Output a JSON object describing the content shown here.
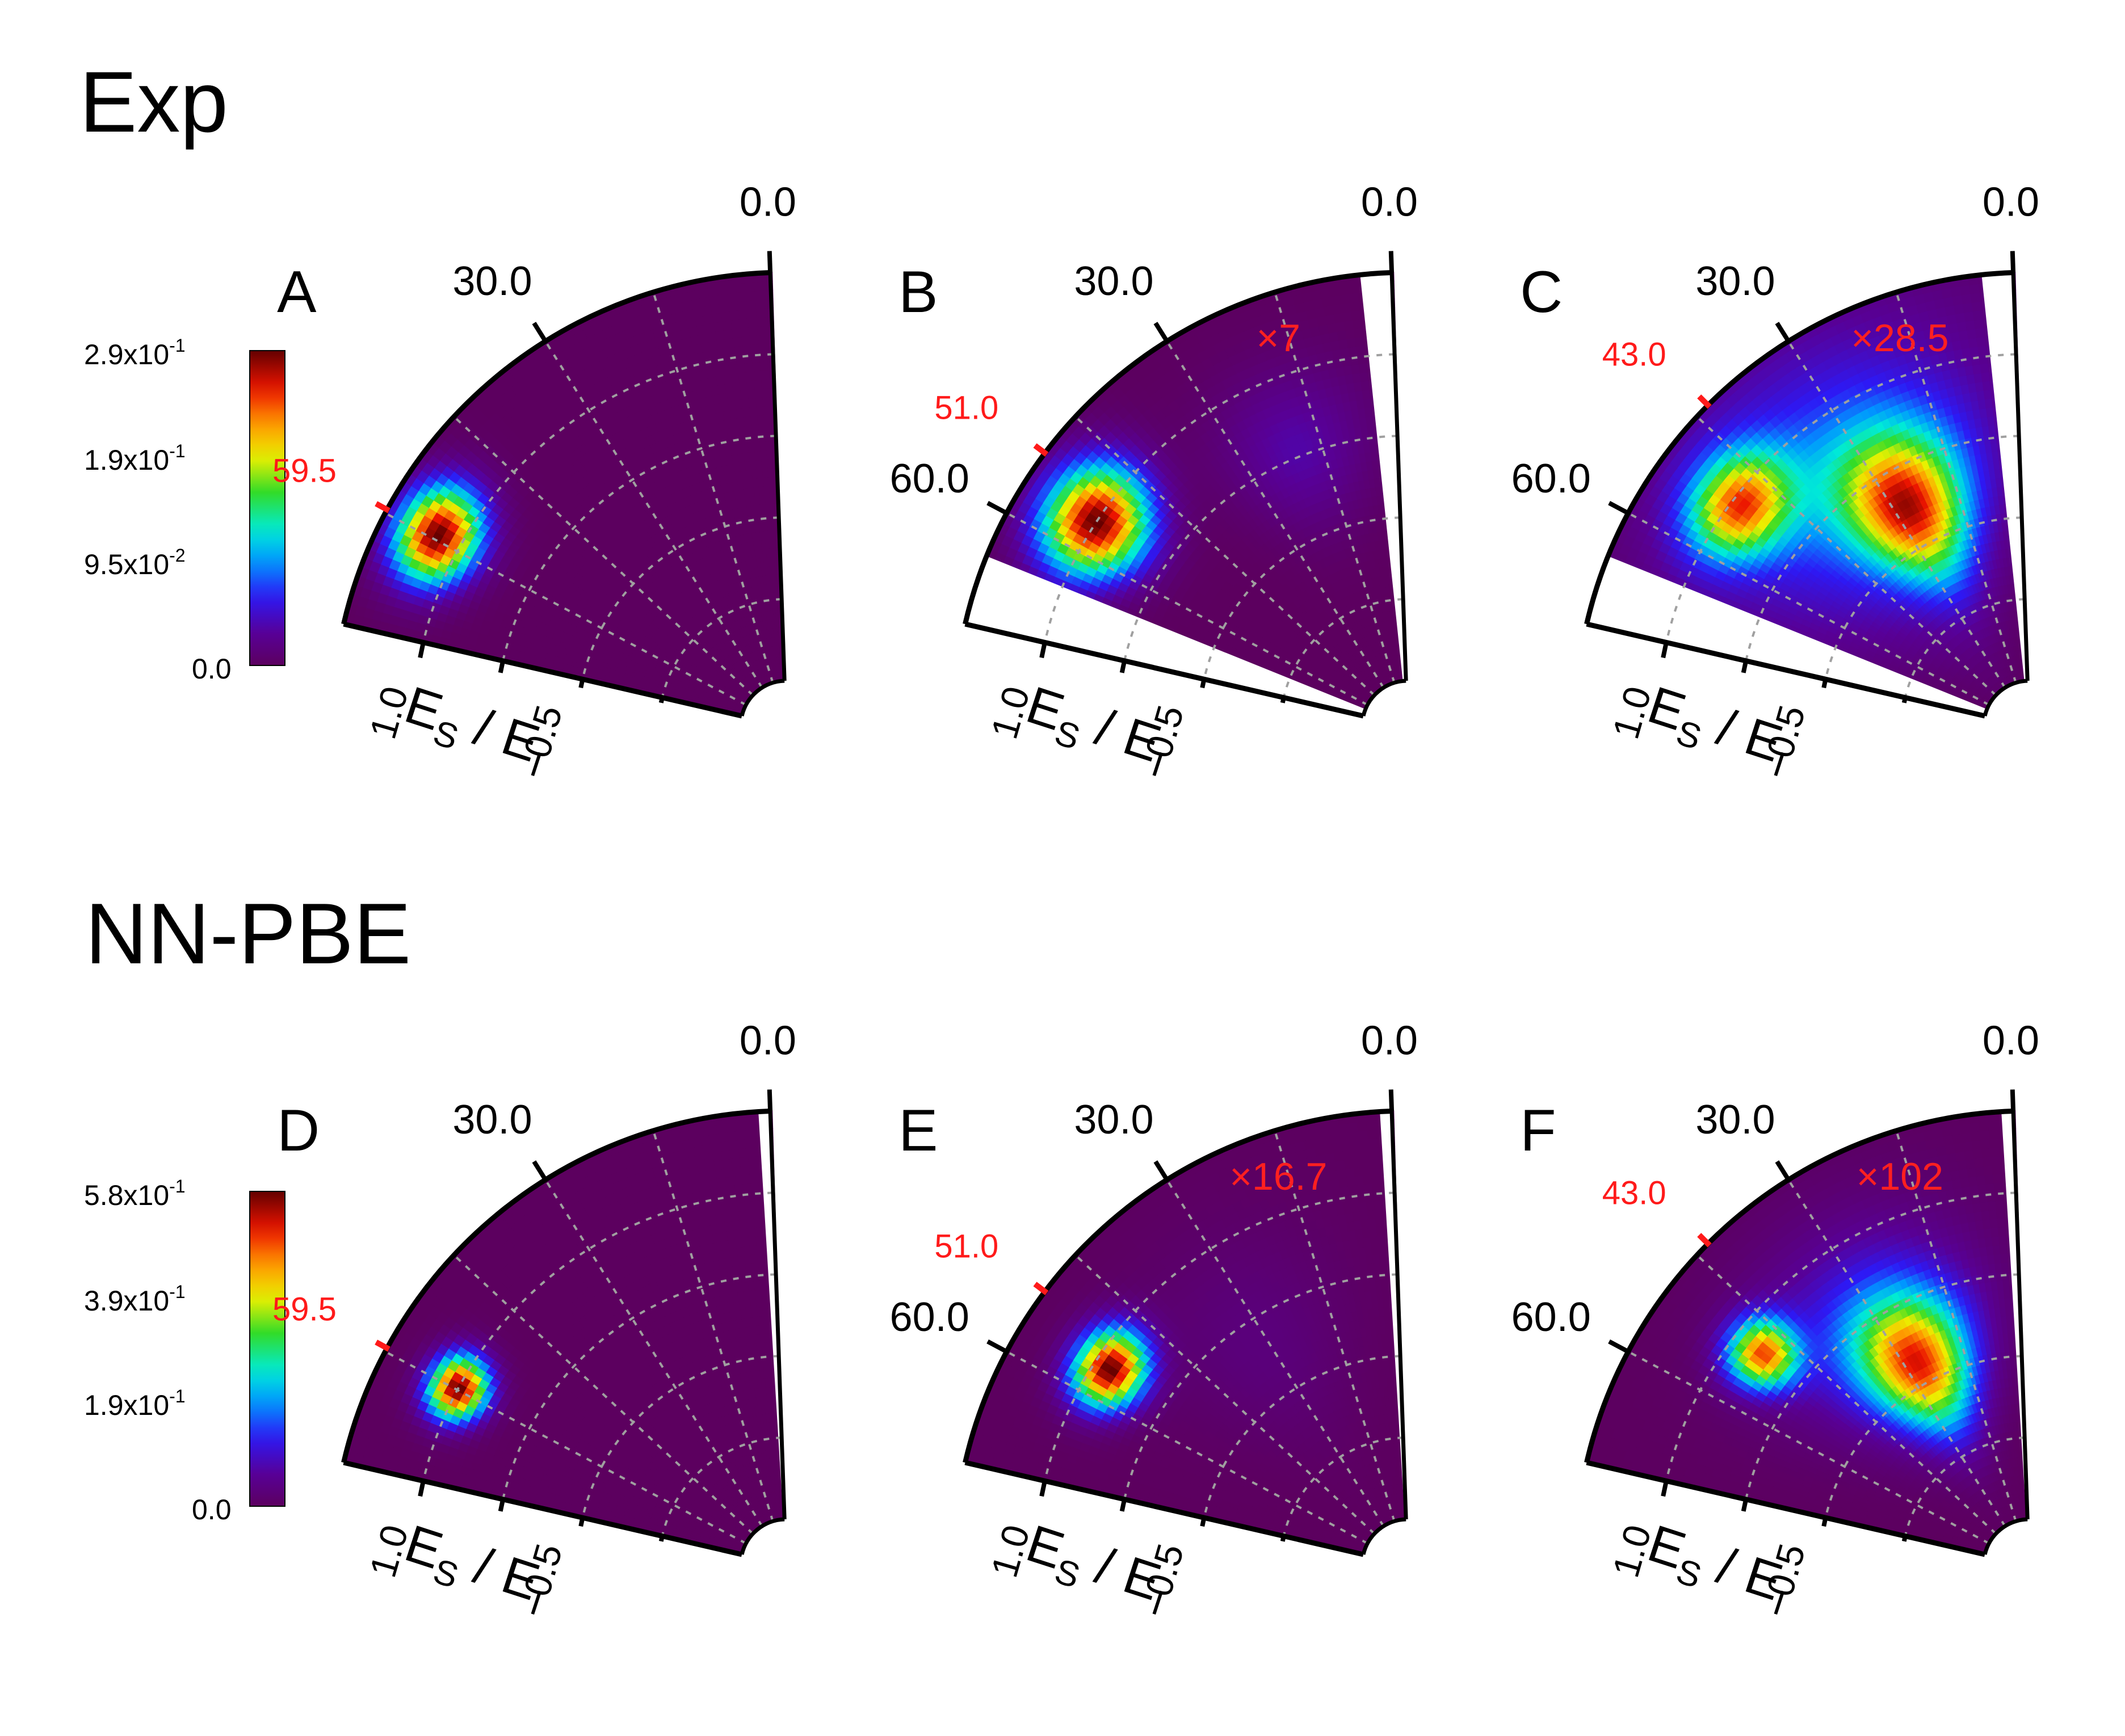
{
  "sections": [
    {
      "title": "Exp",
      "colorbar_ticks": [
        "2.9x10",
        "-1",
        "1.9x10",
        "-1",
        "9.5x10",
        "-2",
        "0.0"
      ]
    },
    {
      "title": "NN-PBE",
      "colorbar_ticks": [
        "5.8x10",
        "-1",
        "3.9x10",
        "-1",
        "1.9x10",
        "-1",
        "0.0"
      ]
    }
  ],
  "colorbars": [
    {
      "max": 0.29,
      "ticks": [
        {
          "mant": "2.9x10",
          "exp": "-1",
          "v": 0.29
        },
        {
          "mant": "1.9x10",
          "exp": "-1",
          "v": 0.19
        },
        {
          "mant": "9.5x10",
          "exp": "-2",
          "v": 0.095
        },
        {
          "mant": "0.0",
          "exp": "",
          "v": 0
        }
      ]
    },
    {
      "max": 0.58,
      "ticks": [
        {
          "mant": "5.8x10",
          "exp": "-1",
          "v": 0.58
        },
        {
          "mant": "3.9x10",
          "exp": "-1",
          "v": 0.39
        },
        {
          "mant": "1.9x10",
          "exp": "-1",
          "v": 0.19
        },
        {
          "mant": "0.0",
          "exp": "",
          "v": 0
        }
      ]
    }
  ],
  "colors": {
    "background": "#5c005f",
    "grid": "#a0a0a0",
    "red_label": "#ff1a1a",
    "axis": "#000000"
  },
  "chart_data": [
    {
      "panel": "A",
      "type": "heatmap",
      "polar": true,
      "theta_range": [
        0,
        75
      ],
      "r_range": [
        0,
        1.0
      ],
      "angle_ticks": [
        "0.0",
        "30.0"
      ],
      "red_tick": {
        "label": "59.5",
        "angle": 59.5
      },
      "radial_ticks": [
        "1.0",
        "0.5"
      ],
      "xlabel": {
        "main": "E",
        "sub1": "S",
        "slash": " / ",
        "main2": "E",
        "sub2": "I"
      },
      "multiplier": "",
      "masked_angles": [],
      "peaks": [
        {
          "theta": 59.5,
          "r": 0.86,
          "sr": 0.07,
          "st": 5,
          "amp": 0.29
        }
      ]
    },
    {
      "panel": "B",
      "type": "heatmap",
      "polar": true,
      "theta_range": [
        0,
        75
      ],
      "r_range": [
        0,
        1.0
      ],
      "angle_ticks": [
        "0.0",
        "30.0",
        "60.0"
      ],
      "red_tick": {
        "label": "51.0",
        "angle": 51.0
      },
      "radial_ticks": [
        "1.0",
        "0.5"
      ],
      "xlabel": {
        "main": "E",
        "sub1": "S",
        "slash": " / ",
        "main2": "E",
        "sub2": "I"
      },
      "multiplier": "×7",
      "masked_angles": [
        [
          0,
          4
        ],
        [
          66,
          75
        ]
      ],
      "peaks": [
        {
          "theta": 55,
          "r": 0.8,
          "sr": 0.09,
          "st": 6,
          "amp": 0.29
        },
        {
          "theta": 20,
          "r": 0.62,
          "sr": 0.14,
          "st": 10,
          "amp": 0.035
        }
      ]
    },
    {
      "panel": "C",
      "type": "heatmap",
      "polar": true,
      "theta_range": [
        0,
        75
      ],
      "r_range": [
        0,
        1.0
      ],
      "angle_ticks": [
        "0.0",
        "30.0",
        "60.0"
      ],
      "red_tick": {
        "label": "43.0",
        "angle": 43.0
      },
      "radial_ticks": [
        "1.0",
        "0.5"
      ],
      "xlabel": {
        "main": "E",
        "sub1": "S",
        "slash": " / ",
        "main2": "E",
        "sub2": "I"
      },
      "multiplier": "×28.5",
      "masked_angles": [
        [
          0,
          4
        ],
        [
          66,
          75
        ]
      ],
      "peaks": [
        {
          "theta": 51,
          "r": 0.78,
          "sr": 0.08,
          "st": 6,
          "amp": 0.2
        },
        {
          "theta": 27,
          "r": 0.5,
          "sr": 0.13,
          "st": 9,
          "amp": 0.21
        },
        {
          "theta": 36,
          "r": 0.62,
          "sr": 0.28,
          "st": 22,
          "amp": 0.08
        }
      ]
    },
    {
      "panel": "D",
      "type": "heatmap",
      "polar": true,
      "theta_range": [
        0,
        75
      ],
      "r_range": [
        0,
        1.0
      ],
      "angle_ticks": [
        "0.0",
        "30.0"
      ],
      "red_tick": {
        "label": "59.5",
        "angle": 59.5
      },
      "radial_ticks": [
        "1.0",
        "0.5"
      ],
      "xlabel": {
        "main": "E",
        "sub1": "S",
        "slash": " / ",
        "main2": "E",
        "sub2": "I"
      },
      "multiplier": "",
      "masked_angles": [
        [
          0,
          1.5
        ]
      ],
      "peaks": [
        {
          "theta": 60,
          "r": 0.8,
          "sr": 0.05,
          "st": 3.5,
          "amp": 0.58
        }
      ]
    },
    {
      "panel": "E",
      "type": "heatmap",
      "polar": true,
      "theta_range": [
        0,
        75
      ],
      "r_range": [
        0,
        1.0
      ],
      "angle_ticks": [
        "0.0",
        "30.0",
        "60.0"
      ],
      "red_tick": {
        "label": "51.0",
        "angle": 51.0
      },
      "radial_ticks": [
        "1.0",
        "0.5"
      ],
      "xlabel": {
        "main": "E",
        "sub1": "S",
        "slash": " / ",
        "main2": "E",
        "sub2": "I"
      },
      "multiplier": "×16.7",
      "masked_angles": [
        [
          0,
          1.5
        ]
      ],
      "peaks": [
        {
          "theta": 55,
          "r": 0.76,
          "sr": 0.06,
          "st": 4.5,
          "amp": 0.58
        },
        {
          "theta": 32,
          "r": 0.55,
          "sr": 0.2,
          "st": 14,
          "amp": 0.03
        }
      ]
    },
    {
      "panel": "F",
      "type": "heatmap",
      "polar": true,
      "theta_range": [
        0,
        75
      ],
      "r_range": [
        0,
        1.0
      ],
      "angle_ticks": [
        "0.0",
        "30.0",
        "60.0"
      ],
      "red_tick": {
        "label": "43.0",
        "angle": 43.0
      },
      "radial_ticks": [
        "1.0",
        "0.5"
      ],
      "xlabel": {
        "main": "E",
        "sub1": "S",
        "slash": " / ",
        "main2": "E",
        "sub2": "I"
      },
      "multiplier": "×102",
      "masked_angles": [
        [
          0,
          1.5
        ]
      ],
      "peaks": [
        {
          "theta": 50,
          "r": 0.72,
          "sr": 0.06,
          "st": 4,
          "amp": 0.45
        },
        {
          "theta": 27,
          "r": 0.45,
          "sr": 0.12,
          "st": 9,
          "amp": 0.42
        },
        {
          "theta": 32,
          "r": 0.55,
          "sr": 0.2,
          "st": 15,
          "amp": 0.12
        }
      ]
    }
  ]
}
